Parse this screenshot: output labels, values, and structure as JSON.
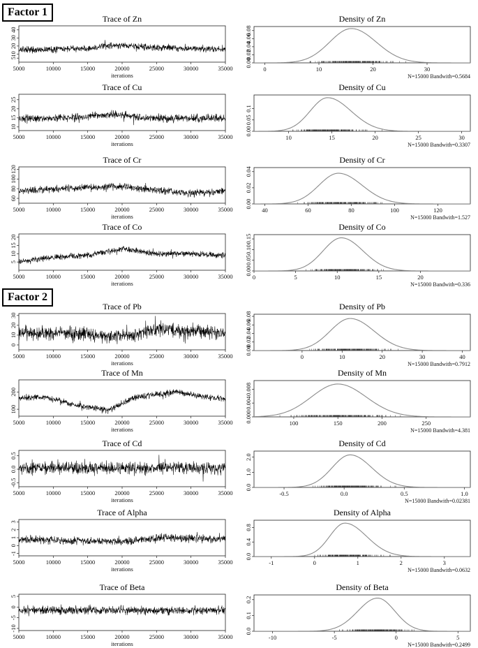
{
  "factors": [
    "Factor 1",
    "Factor 2"
  ],
  "colors": {
    "trace": "#000000",
    "density": "#8a8a8a",
    "frame": "#222222"
  },
  "chart_data": [
    {
      "type": "line",
      "kind": "trace",
      "title": "Trace of Zn",
      "xlabel": "iterations",
      "xlim": [
        5000,
        35000
      ],
      "xticks": [
        "5000",
        "10000",
        "15000",
        "20000",
        "25000",
        "30000",
        "35000"
      ],
      "ylim": [
        0,
        45
      ],
      "yticks": [
        5,
        10,
        20,
        30,
        40
      ],
      "ytick_labels": [
        "5",
        "10",
        "20",
        "30",
        "40"
      ],
      "level": [
        [
          5000,
          15
        ],
        [
          10000,
          16
        ],
        [
          15000,
          17
        ],
        [
          19000,
          21
        ],
        [
          25000,
          18
        ],
        [
          30000,
          17
        ],
        [
          35000,
          16
        ]
      ],
      "spread": 5
    },
    {
      "type": "line",
      "kind": "density",
      "title": "Density of Zn",
      "note": "N=15000 Bandwith=0.5684",
      "xlim": [
        -2,
        38
      ],
      "xticks": [
        "0",
        "10",
        "20",
        "30"
      ],
      "xtick_values": [
        0,
        10,
        20,
        30
      ],
      "ylim": [
        0,
        0.09
      ],
      "yticks": [
        0,
        0.02,
        0.04,
        0.06,
        0.08
      ],
      "ytick_labels": [
        "0.00",
        "0.02",
        "0.04",
        "0.06",
        "0.08"
      ],
      "mode": 16,
      "peak": 0.085,
      "sd_left": 4.0,
      "sd_right": 4.6
    },
    {
      "type": "line",
      "kind": "trace",
      "title": "Trace of Cu",
      "xlabel": "iterations",
      "xlim": [
        5000,
        35000
      ],
      "xticks": [
        "5000",
        "10000",
        "15000",
        "20000",
        "25000",
        "30000",
        "35000"
      ],
      "ylim": [
        8,
        28
      ],
      "yticks": [
        10,
        15,
        20,
        25
      ],
      "ytick_labels": [
        "10",
        "15",
        "20",
        "25"
      ],
      "level": [
        [
          5000,
          14.5
        ],
        [
          12000,
          15
        ],
        [
          19000,
          17
        ],
        [
          23000,
          15
        ],
        [
          35000,
          14.5
        ]
      ],
      "spread": 2.6
    },
    {
      "type": "line",
      "kind": "density",
      "title": "Density of Cu",
      "note": "N=15000 Bandwith=0.3307",
      "xlim": [
        6,
        31
      ],
      "xticks": [
        "10",
        "15",
        "20",
        "25",
        "30"
      ],
      "xtick_values": [
        10,
        15,
        20,
        25,
        30
      ],
      "ylim": [
        0,
        0.16
      ],
      "yticks": [
        0,
        0.05,
        0.1
      ],
      "ytick_labels": [
        "0.00",
        "0.05",
        "0.1"
      ],
      "mode": 14.5,
      "peak": 0.148,
      "sd_left": 2.0,
      "sd_right": 2.7
    },
    {
      "type": "line",
      "kind": "trace",
      "title": "Trace of Cr",
      "xlabel": "iterations",
      "xlim": [
        5000,
        35000
      ],
      "xticks": [
        "5000",
        "10000",
        "15000",
        "20000",
        "25000",
        "30000",
        "35000"
      ],
      "ylim": [
        50,
        125
      ],
      "yticks": [
        60,
        80,
        100,
        120
      ],
      "ytick_labels": [
        "60",
        "80",
        "100",
        "120"
      ],
      "level": [
        [
          5000,
          76
        ],
        [
          11000,
          80
        ],
        [
          19000,
          86
        ],
        [
          24000,
          78
        ],
        [
          30000,
          70
        ],
        [
          35000,
          76
        ]
      ],
      "spread": 9
    },
    {
      "type": "line",
      "kind": "density",
      "title": "Density of Cr",
      "note": "N=15000 Bandwith=1.527",
      "xlim": [
        35,
        135
      ],
      "xticks": [
        "40",
        "60",
        "80",
        "100",
        "120"
      ],
      "xtick_values": [
        40,
        60,
        80,
        100,
        120
      ],
      "ylim": [
        0,
        0.045
      ],
      "yticks": [
        0,
        0.02,
        0.04
      ],
      "ytick_labels": [
        "0.00",
        "0.02",
        "0.04"
      ],
      "mode": 74,
      "peak": 0.038,
      "sd_left": 9,
      "sd_right": 11
    },
    {
      "type": "line",
      "kind": "trace",
      "title": "Trace of Co",
      "xlabel": "iterations",
      "xlim": [
        5000,
        35000
      ],
      "xticks": [
        "5000",
        "10000",
        "15000",
        "20000",
        "25000",
        "30000",
        "35000"
      ],
      "ylim": [
        0,
        22
      ],
      "yticks": [
        5,
        10,
        15,
        20
      ],
      "ytick_labels": [
        "5",
        "10",
        "15",
        "20"
      ],
      "level": [
        [
          5000,
          5
        ],
        [
          10000,
          8
        ],
        [
          15000,
          9
        ],
        [
          20000,
          13
        ],
        [
          25000,
          10
        ],
        [
          30000,
          10
        ],
        [
          35000,
          9
        ]
      ],
      "spread": 2.2
    },
    {
      "type": "line",
      "kind": "density",
      "title": "Density of Co",
      "note": "N=15000 Bandwith=0.336",
      "xlim": [
        0,
        26
      ],
      "xticks": [
        "0",
        "5",
        "10",
        "15",
        "20"
      ],
      "xtick_values": [
        0,
        5,
        10,
        15,
        20
      ],
      "ylim": [
        0,
        0.17
      ],
      "yticks": [
        0,
        0.05,
        0.1,
        0.15
      ],
      "ytick_labels": [
        "0.00",
        "0.05",
        "0.10",
        "0.15"
      ],
      "mode": 10.5,
      "peak": 0.155,
      "sd_left": 2.2,
      "sd_right": 2.6
    },
    {
      "type": "line",
      "kind": "trace",
      "title": "Trace of Pb",
      "xlabel": "iterations",
      "xlim": [
        5000,
        35000
      ],
      "xticks": [
        "5000",
        "10000",
        "15000",
        "20000",
        "25000",
        "30000",
        "35000"
      ],
      "ylim": [
        -5,
        32
      ],
      "yticks": [
        0,
        10,
        20,
        30
      ],
      "ytick_labels": [
        "0",
        "10",
        "20",
        "30"
      ],
      "level": [
        [
          5000,
          13
        ],
        [
          15000,
          11
        ],
        [
          19000,
          8
        ],
        [
          26000,
          16
        ],
        [
          35000,
          12
        ]
      ],
      "spread": 9
    },
    {
      "type": "line",
      "kind": "density",
      "title": "Density of Pb",
      "note": "N=15000 Bandwith=0.7912",
      "xlim": [
        -12,
        42
      ],
      "xticks": [
        "0",
        "10",
        "20",
        "30",
        "40"
      ],
      "xtick_values": [
        0,
        10,
        20,
        30,
        40
      ],
      "ylim": [
        0,
        0.085
      ],
      "yticks": [
        0,
        0.02,
        0.04,
        0.06,
        0.08
      ],
      "ytick_labels": [
        "0.00",
        "0.02",
        "0.04",
        "0.06",
        "0.08"
      ],
      "mode": 12,
      "peak": 0.075,
      "sd_left": 5,
      "sd_right": 6
    },
    {
      "type": "line",
      "kind": "trace",
      "title": "Trace of Mn",
      "xlabel": "iterations",
      "xlim": [
        5000,
        35000
      ],
      "xticks": [
        "5000",
        "10000",
        "15000",
        "20000",
        "25000",
        "30000",
        "35000"
      ],
      "ylim": [
        60,
        270
      ],
      "yticks": [
        100,
        200
      ],
      "ytick_labels": [
        "100",
        "200"
      ],
      "level": [
        [
          5000,
          165
        ],
        [
          9000,
          170
        ],
        [
          13000,
          125
        ],
        [
          18000,
          95
        ],
        [
          22000,
          170
        ],
        [
          28000,
          200
        ],
        [
          33000,
          165
        ],
        [
          35000,
          160
        ]
      ],
      "spread": 22
    },
    {
      "type": "line",
      "kind": "density",
      "title": "Density of Mn",
      "note": "N=15000 Bandwith=4.381",
      "xlim": [
        55,
        300
      ],
      "xticks": [
        "100",
        "150",
        "200",
        "250"
      ],
      "xtick_values": [
        100,
        150,
        200,
        250
      ],
      "ylim": [
        0,
        0.0105
      ],
      "yticks": [
        0,
        0.004,
        0.008
      ],
      "ytick_labels": [
        "0.000",
        "0.004",
        "0.008"
      ],
      "mode": 150,
      "peak": 0.0095,
      "sd_left": 30,
      "sd_right": 32
    },
    {
      "type": "line",
      "kind": "trace",
      "title": "Trace of Cd",
      "xlabel": "iterations",
      "xlim": [
        5000,
        35000
      ],
      "xticks": [
        "5000",
        "10000",
        "15000",
        "20000",
        "25000",
        "30000",
        "35000"
      ],
      "ylim": [
        -0.65,
        0.7
      ],
      "yticks": [
        -0.5,
        0,
        0.5
      ],
      "ytick_labels": [
        "-0.5",
        "0.0",
        "0.5"
      ],
      "level": [
        [
          5000,
          0.05
        ],
        [
          35000,
          0.05
        ]
      ],
      "spread": 0.3
    },
    {
      "type": "line",
      "kind": "density",
      "title": "Density of Cd",
      "note": "N=15000 Bandwith=0.02381",
      "xlim": [
        -0.75,
        1.05
      ],
      "xticks": [
        "-0.5",
        "0.0",
        "0.5",
        "1.0"
      ],
      "xtick_values": [
        -0.5,
        0,
        0.5,
        1.0
      ],
      "ylim": [
        0,
        2.4
      ],
      "yticks": [
        0,
        1.0,
        2.0
      ],
      "ytick_labels": [
        "0.0",
        "1.0",
        "2.0"
      ],
      "mode": 0.05,
      "peak": 2.15,
      "sd_left": 0.15,
      "sd_right": 0.18
    },
    {
      "type": "line",
      "kind": "trace",
      "title": "Trace of Alpha",
      "xlabel": "iterations",
      "xlim": [
        5000,
        35000
      ],
      "xticks": [
        "5000",
        "10000",
        "15000",
        "20000",
        "25000",
        "30000",
        "35000"
      ],
      "ylim": [
        -1.3,
        3.3
      ],
      "yticks": [
        -1,
        0,
        1,
        2,
        3
      ],
      "ytick_labels": [
        "-1",
        "0",
        "1",
        "2",
        "3"
      ],
      "level": [
        [
          5000,
          0.8
        ],
        [
          15000,
          0.6
        ],
        [
          20000,
          0.5
        ],
        [
          26000,
          1.0
        ],
        [
          35000,
          0.8
        ]
      ],
      "spread": 0.6
    },
    {
      "type": "line",
      "kind": "density",
      "title": "Density of Alpha",
      "note": "N=15000 Bandwith=0.0632",
      "xlim": [
        -1.4,
        3.6
      ],
      "xticks": [
        "-1",
        "0",
        "1",
        "2",
        "3"
      ],
      "xtick_values": [
        -1,
        0,
        1,
        2,
        3
      ],
      "ylim": [
        0,
        1.0
      ],
      "yticks": [
        0,
        0.4,
        0.8
      ],
      "ytick_labels": [
        "0.0",
        "0.4",
        "0.8"
      ],
      "mode": 0.7,
      "peak": 0.92,
      "sd_left": 0.35,
      "sd_right": 0.5
    },
    {
      "type": "line",
      "kind": "trace",
      "title": "Trace of Beta",
      "xlabel": "iterations",
      "xlim": [
        5000,
        35000
      ],
      "xticks": [
        "5000",
        "10000",
        "15000",
        "20000",
        "25000",
        "30000",
        "35000"
      ],
      "ylim": [
        -11,
        6
      ],
      "yticks": [
        -10,
        -5,
        0,
        5
      ],
      "ytick_labels": [
        "-10",
        "-5",
        "0",
        "5"
      ],
      "level": [
        [
          5000,
          -1.5
        ],
        [
          35000,
          -1.5
        ]
      ],
      "spread": 2.5
    },
    {
      "type": "line",
      "kind": "density",
      "title": "Density of Beta",
      "note": "N=15000 Bandwith=0.2499",
      "xlim": [
        -11.5,
        6
      ],
      "xticks": [
        "-10",
        "-5",
        "0",
        "5"
      ],
      "xtick_values": [
        -10,
        -5,
        0,
        5
      ],
      "ylim": [
        0,
        0.23
      ],
      "yticks": [
        0,
        0.1,
        0.2
      ],
      "ytick_labels": [
        "0.0",
        "0.1",
        "0.2"
      ],
      "mode": -1.5,
      "peak": 0.21,
      "sd_left": 1.6,
      "sd_right": 1.4
    }
  ]
}
